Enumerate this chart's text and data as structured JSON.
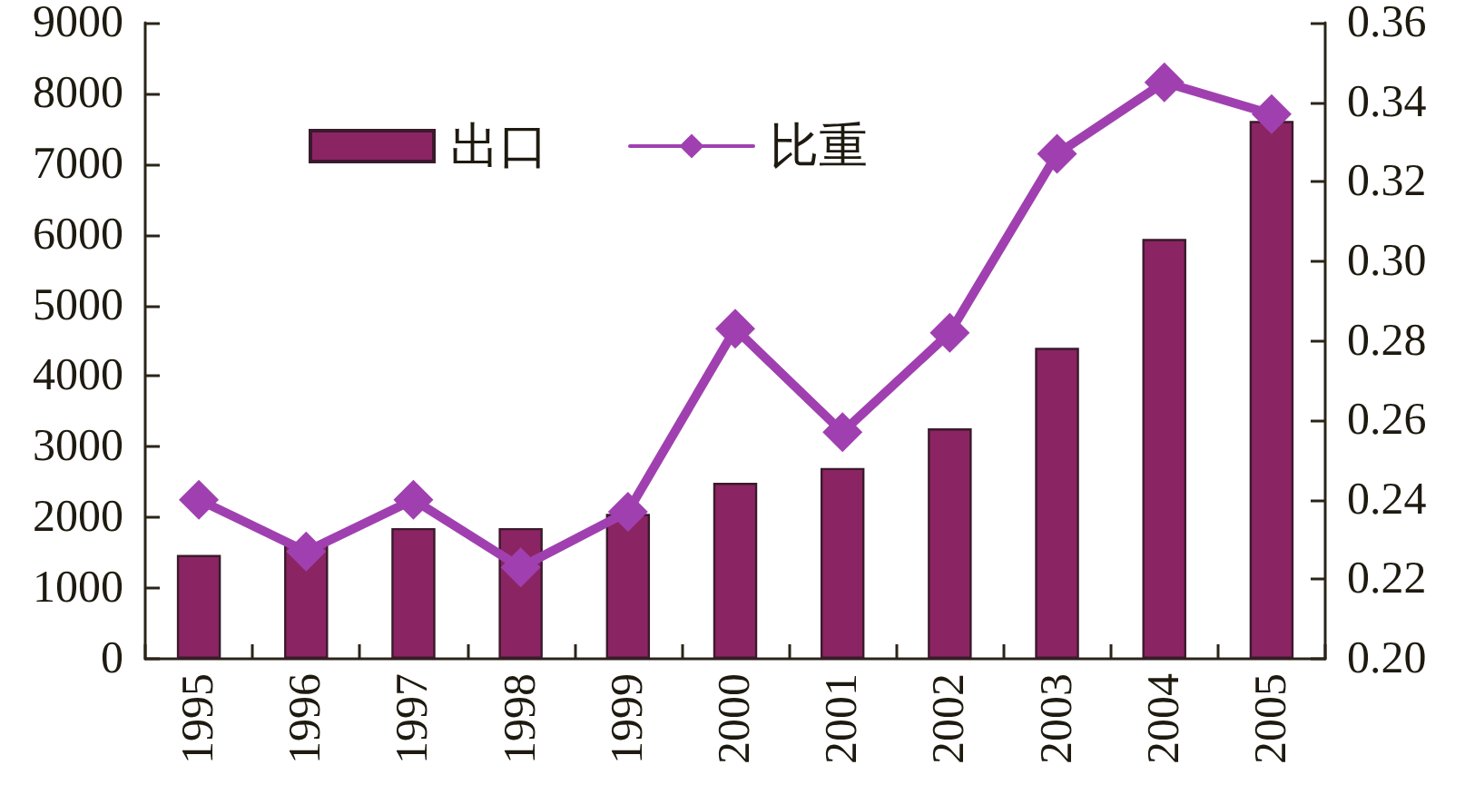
{
  "chart_data": {
    "type": "bar",
    "categories": [
      "1995",
      "1996",
      "1997",
      "1998",
      "1999",
      "2000",
      "2001",
      "2002",
      "2003",
      "2004",
      "2005"
    ],
    "series": [
      {
        "name": "出口",
        "color": "#8b2462",
        "values": [
          1470,
          1650,
          1850,
          1850,
          2050,
          2490,
          2700,
          3260,
          4400,
          5940,
          7610
        ]
      },
      {
        "name": "比重",
        "type": "line",
        "axis": "y2",
        "color": "#a040b0",
        "marker": "diamond",
        "line_style": "solid",
        "values": [
          0.24,
          0.227,
          0.24,
          0.223,
          0.237,
          0.283,
          0.257,
          0.282,
          0.327,
          0.345,
          0.337
        ]
      }
    ],
    "ylim": [
      0,
      9000
    ],
    "yticks": [
      0,
      1000,
      2000,
      3000,
      4000,
      5000,
      6000,
      7000,
      8000,
      9000
    ],
    "y2lim": [
      0.2,
      0.36
    ],
    "y2ticks": [
      {
        "value": 0.2,
        "label": "0.20"
      },
      0.22,
      0.24,
      0.26,
      0.28,
      {
        "value": 0.3,
        "label": "0.30"
      },
      0.32,
      0.34,
      0.36
    ],
    "legend": "top",
    "grid": false
  }
}
